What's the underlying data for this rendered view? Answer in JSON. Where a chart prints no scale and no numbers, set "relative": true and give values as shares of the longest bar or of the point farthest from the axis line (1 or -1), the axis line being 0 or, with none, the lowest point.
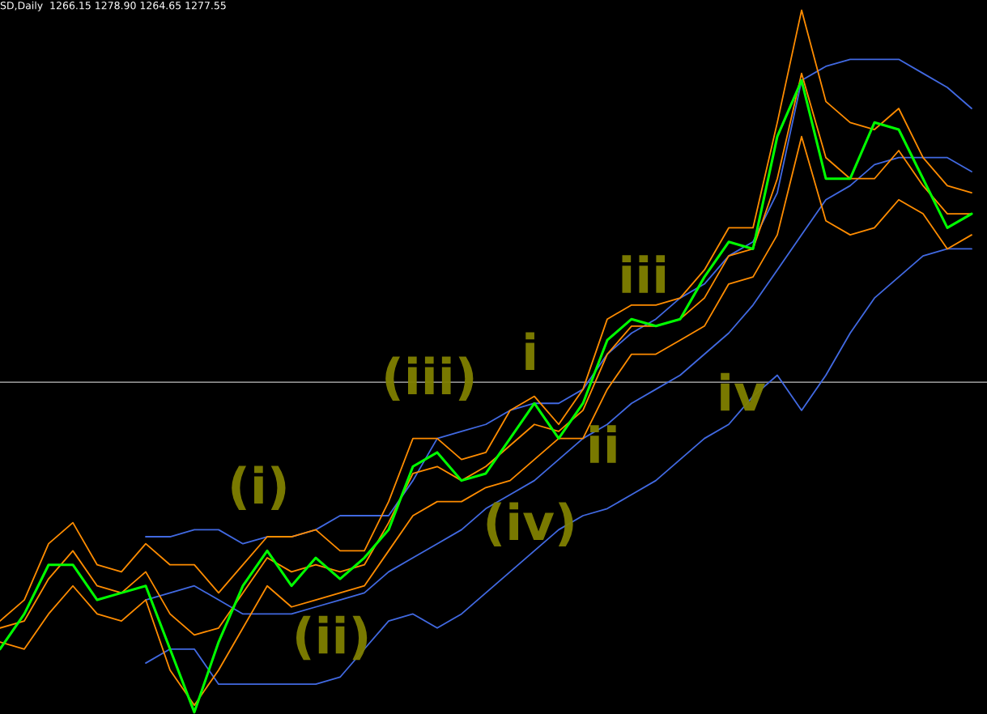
{
  "chart_data": {
    "type": "line",
    "title": "SD,Daily  1266.15 1278.90 1264.65 1277.55",
    "relative": true,
    "legend": false,
    "marker": "none",
    "categories": [
      null,
      null,
      null,
      null,
      null,
      null,
      null,
      null,
      null,
      null,
      null,
      null,
      null,
      null,
      null,
      null,
      null,
      null,
      null,
      null,
      null,
      null,
      null,
      null,
      null,
      null,
      null,
      null,
      null,
      null,
      null,
      null,
      null,
      null,
      null,
      null,
      null,
      null,
      null,
      null,
      null
    ],
    "series": [
      {
        "color": "#4169e1",
        "values": [
          null,
          null,
          null,
          null,
          null,
          null,
          0.25,
          0.25,
          0.26,
          0.26,
          0.24,
          0.25,
          0.25,
          0.26,
          0.28,
          0.28,
          0.28,
          0.33,
          0.39,
          0.4,
          0.41,
          0.43,
          0.44,
          0.44,
          0.46,
          0.51,
          0.54,
          0.56,
          0.59,
          0.61,
          0.65,
          0.67,
          0.74,
          0.9,
          0.92,
          0.93,
          0.93,
          0.93,
          0.91,
          0.89,
          0.86
        ]
      },
      {
        "color": "#4169e1",
        "values": [
          null,
          null,
          null,
          null,
          null,
          null,
          0.16,
          0.17,
          0.18,
          0.16,
          0.14,
          0.14,
          0.14,
          0.15,
          0.16,
          0.17,
          0.2,
          0.22,
          0.24,
          0.26,
          0.29,
          0.31,
          0.33,
          0.36,
          0.39,
          0.41,
          0.44,
          0.46,
          0.48,
          0.51,
          0.54,
          0.58,
          0.63,
          0.68,
          0.73,
          0.75,
          0.78,
          0.79,
          0.79,
          0.79,
          0.77
        ]
      },
      {
        "color": "#4169e1",
        "values": [
          null,
          null,
          null,
          null,
          null,
          null,
          0.07,
          0.09,
          0.09,
          0.04,
          0.04,
          0.04,
          0.04,
          0.04,
          0.05,
          0.09,
          0.13,
          0.14,
          0.12,
          0.14,
          0.17,
          0.2,
          0.23,
          0.26,
          0.28,
          0.29,
          0.31,
          0.33,
          0.36,
          0.39,
          0.41,
          0.45,
          0.48,
          0.43,
          0.48,
          0.54,
          0.59,
          0.62,
          0.65,
          0.66,
          0.66
        ]
      },
      {
        "color": "#ff8c00",
        "values": [
          0.13,
          0.16,
          0.24,
          0.27,
          0.21,
          0.2,
          0.24,
          0.21,
          0.21,
          0.17,
          0.21,
          0.25,
          0.25,
          0.26,
          0.23,
          0.23,
          0.3,
          0.39,
          0.39,
          0.36,
          0.37,
          0.43,
          0.45,
          0.41,
          0.46,
          0.56,
          0.58,
          0.58,
          0.59,
          0.63,
          0.69,
          0.69,
          0.84,
          1.0,
          0.87,
          0.84,
          0.83,
          0.86,
          0.79,
          0.75,
          0.74
        ]
      },
      {
        "color": "#ff8c00",
        "values": [
          0.12,
          0.13,
          0.19,
          0.23,
          0.18,
          0.17,
          0.2,
          0.14,
          0.11,
          0.12,
          0.17,
          0.22,
          0.2,
          0.21,
          0.2,
          0.21,
          0.27,
          0.34,
          0.35,
          0.33,
          0.35,
          0.38,
          0.41,
          0.4,
          0.43,
          0.51,
          0.55,
          0.55,
          0.56,
          0.59,
          0.65,
          0.66,
          0.76,
          0.91,
          0.79,
          0.76,
          0.76,
          0.8,
          0.75,
          0.71,
          0.71
        ]
      },
      {
        "color": "#ff8c00",
        "values": [
          0.1,
          0.09,
          0.14,
          0.18,
          0.14,
          0.13,
          0.16,
          0.06,
          0.01,
          0.06,
          0.12,
          0.18,
          0.15,
          0.16,
          0.17,
          0.18,
          0.23,
          0.28,
          0.3,
          0.3,
          0.32,
          0.33,
          0.36,
          0.39,
          0.39,
          0.46,
          0.51,
          0.51,
          0.53,
          0.55,
          0.61,
          0.62,
          0.68,
          0.82,
          0.7,
          0.68,
          0.69,
          0.73,
          0.71,
          0.66,
          0.68
        ]
      },
      {
        "color": "#00ff00",
        "values": [
          0.09,
          0.14,
          0.21,
          0.21,
          0.16,
          0.17,
          0.18,
          0.09,
          0.0,
          0.1,
          0.18,
          0.23,
          0.18,
          0.22,
          0.19,
          0.22,
          0.26,
          0.35,
          0.37,
          0.33,
          0.34,
          0.39,
          0.44,
          0.39,
          0.44,
          0.53,
          0.56,
          0.55,
          0.56,
          0.62,
          0.67,
          0.66,
          0.82,
          0.9,
          0.76,
          0.76,
          0.84,
          0.83,
          0.76,
          0.69,
          0.71
        ]
      }
    ],
    "ref_lines": [
      {
        "axis": "y",
        "value": 0.47,
        "color": "#c0c0c0"
      }
    ],
    "annotations": [
      "(i)",
      "(ii)",
      "(iii)",
      "(iv)",
      "i",
      "ii",
      "iii",
      "iv"
    ]
  }
}
